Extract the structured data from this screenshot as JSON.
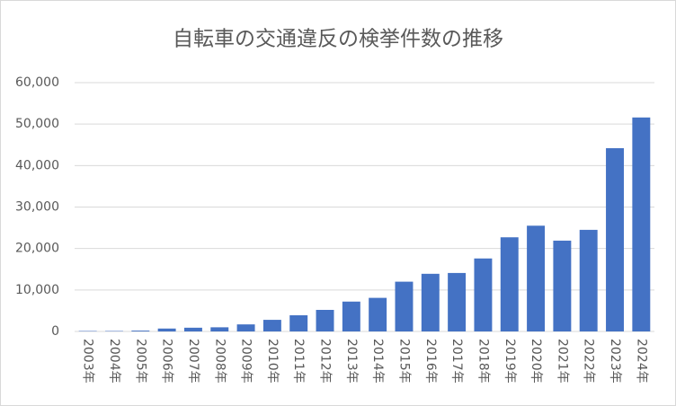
{
  "chart_data": {
    "type": "bar",
    "title": "自転車の交通違反の検挙件数の推移",
    "categories": [
      "2003年",
      "2004年",
      "2005年",
      "2006年",
      "2007年",
      "2008年",
      "2009年",
      "2010年",
      "2011年",
      "2012年",
      "2013年",
      "2014年",
      "2015年",
      "2016年",
      "2017年",
      "2018年",
      "2019年",
      "2020年",
      "2021年",
      "2022年",
      "2023年",
      "2024年"
    ],
    "values": [
      100,
      100,
      200,
      700,
      900,
      1000,
      1700,
      2800,
      3900,
      5200,
      7200,
      8100,
      12000,
      13900,
      14100,
      17600,
      22700,
      25500,
      21900,
      24500,
      44200,
      51600
    ],
    "color": "#4472c4",
    "ylim": [
      0,
      60000
    ],
    "yticks": [
      0,
      {
        "value": 10000,
        "label": "10,000"
      },
      {
        "value": 20000,
        "label": "20,000"
      },
      {
        "value": 30000,
        "label": "30,000"
      },
      {
        "value": 40000,
        "label": "40,000"
      },
      {
        "value": 50000,
        "label": "50,000"
      },
      {
        "value": 60000,
        "label": "60,000"
      }
    ],
    "grid": true
  }
}
